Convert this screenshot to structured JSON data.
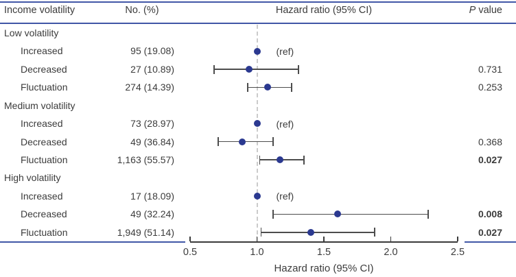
{
  "header": {
    "income": "Income volatility",
    "no": "No. (%)",
    "hr": "Hazard ratio (95% CI)",
    "p_italic": "P",
    "p_rest": " value"
  },
  "axis": {
    "label": "Hazard ratio (95% CI)",
    "ticks": [
      "0.5",
      "1.0",
      "1.5",
      "2.0",
      "2.5"
    ],
    "min": 0.5,
    "max": 2.5,
    "ref_line": 1.0
  },
  "colors": {
    "accent_blue": "#4056a6",
    "dot_navy": "#2b3990",
    "ci_line": "#4c4c4c",
    "axis_line": "#3a3a3a",
    "text": "#3b3b3b",
    "ref_dash": "#cbcbcb"
  },
  "chart_data": {
    "type": "forest",
    "title": "",
    "xlabel": "Hazard ratio (95% CI)",
    "xlim": [
      0.5,
      2.5
    ],
    "ref_label": "(ref)",
    "rows": [
      {
        "kind": "group",
        "label": "Low volatility"
      },
      {
        "kind": "item",
        "label": "Increased",
        "no": "95 (19.08)",
        "ref": true,
        "hr": 1.0,
        "p": ""
      },
      {
        "kind": "item",
        "label": "Decreased",
        "no": "27 (10.89)",
        "hr": 0.94,
        "lo": 0.68,
        "hi": 1.31,
        "p": "0.731",
        "p_bold": false
      },
      {
        "kind": "item",
        "label": "Fluctuation",
        "no": "274 (14.39)",
        "hr": 1.08,
        "lo": 0.93,
        "hi": 1.26,
        "p": "0.253",
        "p_bold": false
      },
      {
        "kind": "group",
        "label": "Medium volatility"
      },
      {
        "kind": "item",
        "label": "Increased",
        "no": "73 (28.97)",
        "ref": true,
        "hr": 1.0,
        "p": ""
      },
      {
        "kind": "item",
        "label": "Decreased",
        "no": "49 (36.84)",
        "hr": 0.89,
        "lo": 0.71,
        "hi": 1.12,
        "p": "0.368",
        "p_bold": false
      },
      {
        "kind": "item",
        "label": "Fluctuation",
        "no": "1,163 (55.57)",
        "hr": 1.17,
        "lo": 1.02,
        "hi": 1.35,
        "p": "0.027",
        "p_bold": true
      },
      {
        "kind": "group",
        "label": "High volatility"
      },
      {
        "kind": "item",
        "label": "Increased",
        "no": "17 (18.09)",
        "ref": true,
        "hr": 1.0,
        "p": ""
      },
      {
        "kind": "item",
        "label": "Decreased",
        "no": "49 (32.24)",
        "hr": 1.6,
        "lo": 1.12,
        "hi": 2.28,
        "p": "0.008",
        "p_bold": true
      },
      {
        "kind": "item",
        "label": "Fluctuation",
        "no": "1,949 (51.14)",
        "hr": 1.4,
        "lo": 1.03,
        "hi": 1.88,
        "p": "0.027",
        "p_bold": true
      }
    ]
  }
}
